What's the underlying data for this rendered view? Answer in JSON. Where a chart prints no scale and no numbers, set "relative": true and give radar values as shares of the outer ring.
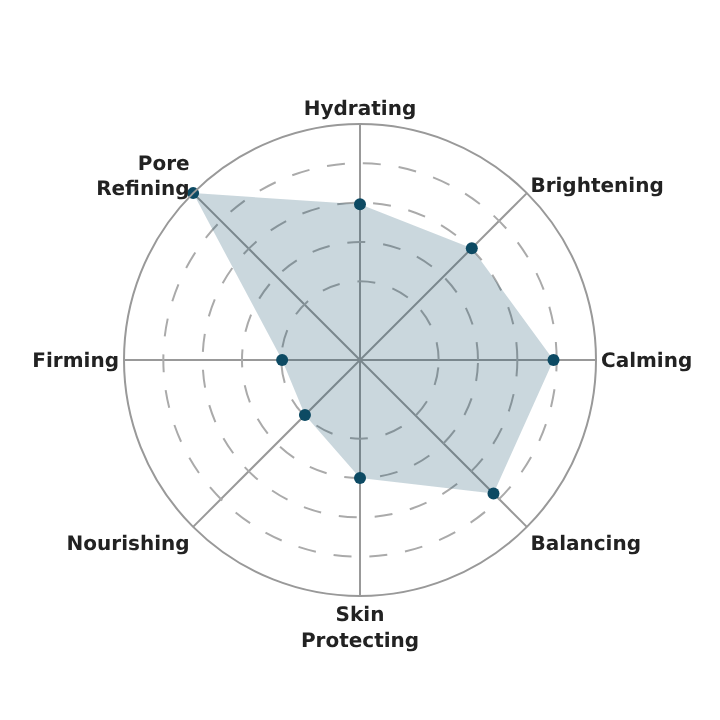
{
  "chart_data": {
    "type": "radar",
    "relative": true,
    "categories": [
      "Hydrating",
      "Brightening",
      "Calming",
      "Balancing",
      "Skin Protecting",
      "Nourishing",
      "Firming",
      "Pore Refining"
    ],
    "series": [
      {
        "color": "#0d4a63",
        "values": [
          0.66,
          0.67,
          0.82,
          0.8,
          0.5,
          0.33,
          0.33,
          1.0
        ]
      }
    ],
    "marker": "circle",
    "grid": true
  }
}
